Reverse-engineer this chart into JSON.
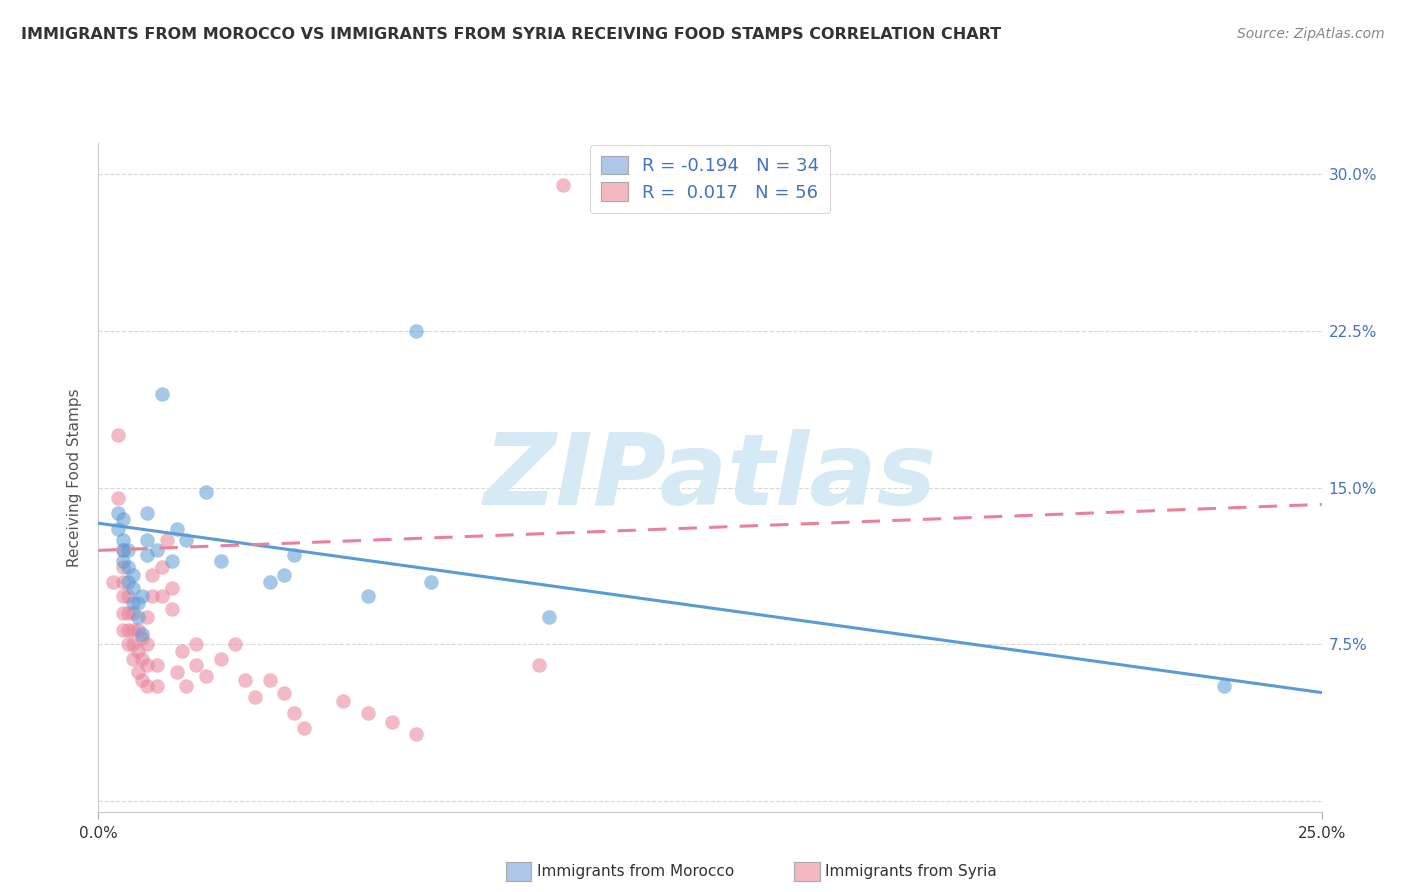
{
  "title": "IMMIGRANTS FROM MOROCCO VS IMMIGRANTS FROM SYRIA RECEIVING FOOD STAMPS CORRELATION CHART",
  "source": "Source: ZipAtlas.com",
  "ylabel": "Receiving Food Stamps",
  "xlim": [
    0.0,
    0.25
  ],
  "ylim": [
    -0.005,
    0.315
  ],
  "yticks": [
    0.0,
    0.075,
    0.15,
    0.225,
    0.3
  ],
  "ytick_labels": [
    "",
    "7.5%",
    "15.0%",
    "22.5%",
    "30.0%"
  ],
  "legend_morocco": {
    "R": "-0.194",
    "N": "34",
    "color": "#aec6e8"
  },
  "legend_syria": {
    "R": "0.017",
    "N": "56",
    "color": "#f4b8c1"
  },
  "morocco_color": "#5b9bd5",
  "syria_color": "#e8829a",
  "morocco_scatter_x": [
    0.004,
    0.004,
    0.005,
    0.005,
    0.005,
    0.005,
    0.006,
    0.006,
    0.006,
    0.007,
    0.007,
    0.007,
    0.008,
    0.008,
    0.009,
    0.009,
    0.01,
    0.01,
    0.01,
    0.012,
    0.013,
    0.015,
    0.016,
    0.018,
    0.022,
    0.025,
    0.035,
    0.038,
    0.04,
    0.055,
    0.065,
    0.068,
    0.092,
    0.23
  ],
  "morocco_scatter_y": [
    0.13,
    0.138,
    0.115,
    0.12,
    0.125,
    0.135,
    0.105,
    0.112,
    0.12,
    0.095,
    0.102,
    0.108,
    0.088,
    0.095,
    0.08,
    0.098,
    0.118,
    0.125,
    0.138,
    0.12,
    0.195,
    0.115,
    0.13,
    0.125,
    0.148,
    0.115,
    0.105,
    0.108,
    0.118,
    0.098,
    0.225,
    0.105,
    0.088,
    0.055
  ],
  "syria_scatter_x": [
    0.003,
    0.004,
    0.004,
    0.005,
    0.005,
    0.005,
    0.005,
    0.005,
    0.005,
    0.006,
    0.006,
    0.006,
    0.006,
    0.007,
    0.007,
    0.007,
    0.007,
    0.008,
    0.008,
    0.008,
    0.009,
    0.009,
    0.009,
    0.01,
    0.01,
    0.01,
    0.01,
    0.011,
    0.011,
    0.012,
    0.012,
    0.013,
    0.013,
    0.014,
    0.015,
    0.015,
    0.016,
    0.017,
    0.018,
    0.02,
    0.02,
    0.022,
    0.025,
    0.028,
    0.03,
    0.032,
    0.035,
    0.038,
    0.04,
    0.042,
    0.05,
    0.055,
    0.06,
    0.065,
    0.09,
    0.095
  ],
  "syria_scatter_y": [
    0.105,
    0.145,
    0.175,
    0.082,
    0.09,
    0.098,
    0.105,
    0.112,
    0.12,
    0.075,
    0.082,
    0.09,
    0.098,
    0.068,
    0.075,
    0.082,
    0.09,
    0.062,
    0.072,
    0.082,
    0.058,
    0.068,
    0.078,
    0.055,
    0.065,
    0.075,
    0.088,
    0.098,
    0.108,
    0.055,
    0.065,
    0.098,
    0.112,
    0.125,
    0.092,
    0.102,
    0.062,
    0.072,
    0.055,
    0.065,
    0.075,
    0.06,
    0.068,
    0.075,
    0.058,
    0.05,
    0.058,
    0.052,
    0.042,
    0.035,
    0.048,
    0.042,
    0.038,
    0.032,
    0.065,
    0.295
  ],
  "morocco_line_x": [
    0.0,
    0.25
  ],
  "morocco_line_y": [
    0.133,
    0.052
  ],
  "syria_line_x": [
    0.0,
    0.25
  ],
  "syria_line_y": [
    0.12,
    0.142
  ],
  "watermark_text": "ZIPatlas",
  "watermark_color": "#d5eaf5",
  "background_color": "#ffffff",
  "grid_color": "#d8d8d8",
  "title_fontsize": 11.5,
  "axis_label_fontsize": 11,
  "tick_fontsize": 11,
  "legend_fontsize": 13,
  "source_fontsize": 10,
  "marker_size": 110,
  "marker_alpha": 0.55,
  "bottom_legend_labels": [
    "Immigrants from Morocco",
    "Immigrants from Syria"
  ]
}
